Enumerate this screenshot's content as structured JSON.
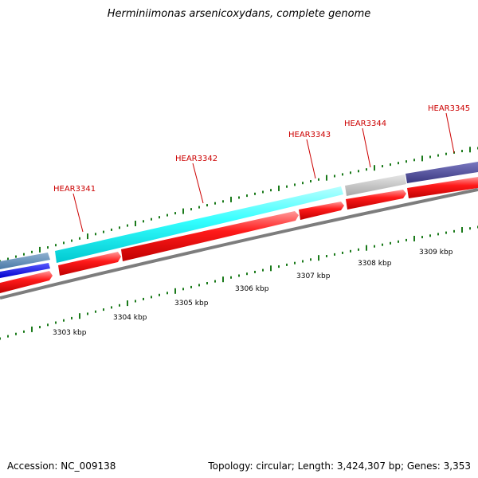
{
  "title": "Herminiimonas arsenicoxydans, complete genome",
  "accession": "Accession: NC_009138",
  "summary": "Topology: circular; Length: 3,424,307 bp; Genes: 3,353",
  "colors": {
    "tick": "#1a7a1a",
    "gene_label": "#cc0000",
    "cds": "#ff0000",
    "backbone": "#808080"
  },
  "scale_labels": [
    "3303 kbp",
    "3304 kbp",
    "3305 kbp",
    "3306 kbp",
    "3307 kbp",
    "3308 kbp",
    "3309 kbp"
  ],
  "genes": [
    {
      "label": "HEAR3341"
    },
    {
      "label": "HEAR3342"
    },
    {
      "label": "HEAR3343"
    },
    {
      "label": "HEAR3344"
    },
    {
      "label": "HEAR3345"
    }
  ]
}
